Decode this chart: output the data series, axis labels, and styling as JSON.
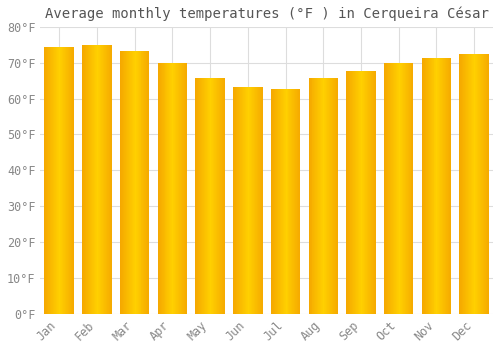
{
  "title": "Average monthly temperatures (°F ) in Cerqueira César",
  "months": [
    "Jan",
    "Feb",
    "Mar",
    "Apr",
    "May",
    "Jun",
    "Jul",
    "Aug",
    "Sep",
    "Oct",
    "Nov",
    "Dec"
  ],
  "values": [
    74.5,
    74.8,
    73.2,
    69.8,
    65.7,
    63.1,
    62.8,
    65.7,
    67.8,
    69.8,
    71.4,
    72.3
  ],
  "bar_color_left": "#F5A800",
  "bar_color_center": "#FFD040",
  "bar_color_right": "#F5A800",
  "ylim": [
    0,
    80
  ],
  "yticks": [
    0,
    10,
    20,
    30,
    40,
    50,
    60,
    70,
    80
  ],
  "ytick_labels": [
    "0°F",
    "10°F",
    "20°F",
    "30°F",
    "40°F",
    "50°F",
    "60°F",
    "70°F",
    "80°F"
  ],
  "background_color": "#ffffff",
  "plot_bg_color": "#ffffff",
  "grid_color": "#dddddd",
  "title_fontsize": 10,
  "tick_fontsize": 8.5,
  "bar_width": 0.78,
  "tick_color": "#888888"
}
